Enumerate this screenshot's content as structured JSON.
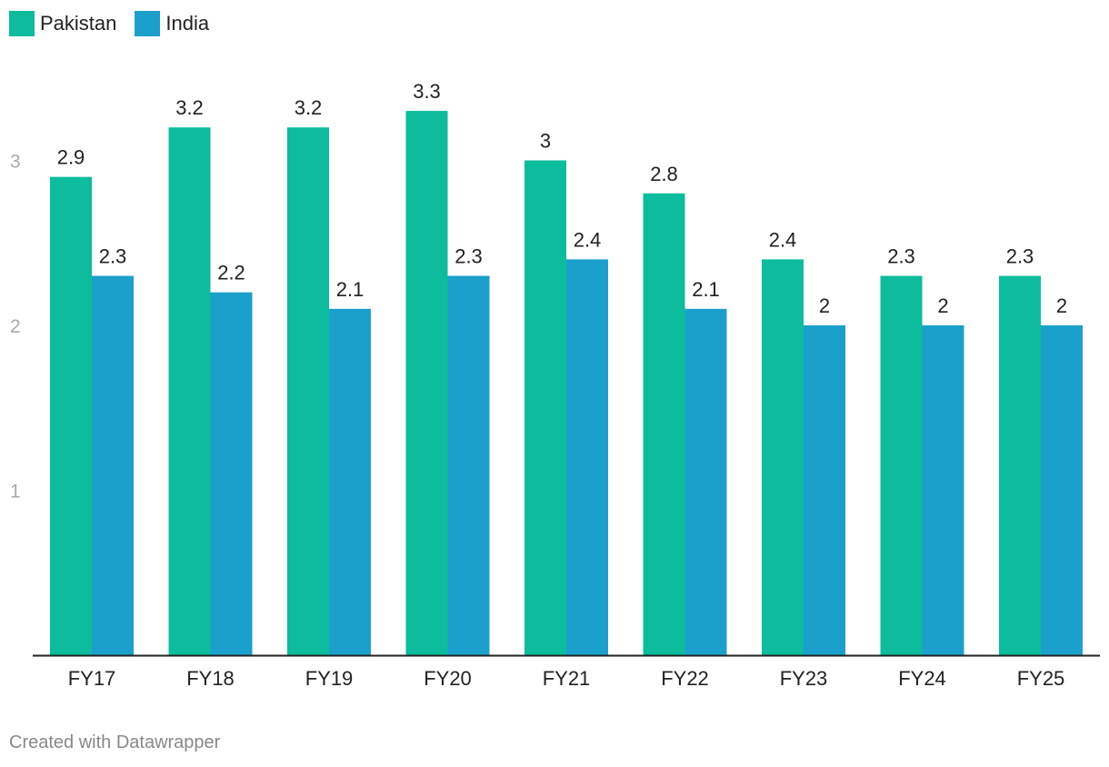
{
  "chart_data": {
    "type": "bar",
    "title": "",
    "xlabel": "",
    "ylabel": "",
    "categories": [
      "FY17",
      "FY18",
      "FY19",
      "FY20",
      "FY21",
      "FY22",
      "FY23",
      "FY24",
      "FY25"
    ],
    "series": [
      {
        "name": "Pakistan",
        "color": "#0cbc9c",
        "values": [
          2.9,
          3.2,
          3.2,
          3.3,
          3,
          2.8,
          2.4,
          2.3,
          2.3
        ]
      },
      {
        "name": "India",
        "color": "#1ba0cc",
        "values": [
          2.3,
          2.2,
          2.1,
          2.3,
          2.4,
          2.1,
          2,
          2,
          2
        ]
      }
    ],
    "yticks": [
      1,
      2,
      3
    ],
    "ylim": [
      0,
      3.3
    ],
    "grid": false,
    "legend": "top-left"
  },
  "footer": {
    "credit": "Created with Datawrapper"
  }
}
